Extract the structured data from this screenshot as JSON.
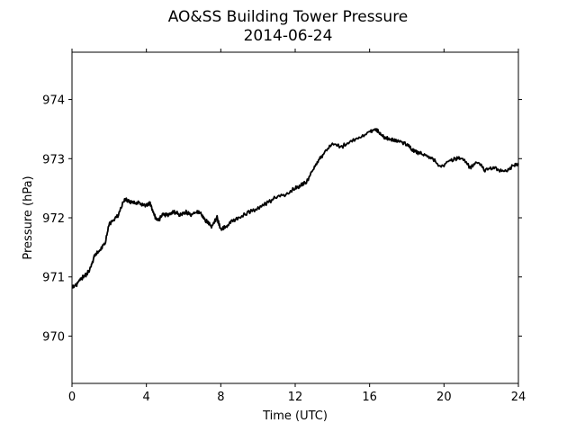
{
  "chart_data": {
    "type": "line",
    "title": "AO&SS Building Tower Pressure",
    "subtitle": "2014-06-24",
    "xlabel": "Time (UTC)",
    "ylabel": "Pressure (hPa)",
    "xlim": [
      0,
      24
    ],
    "ylim": [
      969.2,
      974.8
    ],
    "xticks": [
      0,
      4,
      8,
      12,
      16,
      20,
      24
    ],
    "xtick_labels": [
      "0",
      "4",
      "8",
      "12",
      "16",
      "20",
      "24"
    ],
    "yticks": [
      970,
      971,
      972,
      973,
      974
    ],
    "ytick_labels": [
      "970",
      "971",
      "972",
      "973",
      "974"
    ],
    "grid": false,
    "line_color": "#000000",
    "series": [
      {
        "x": [
          0,
          0.2,
          0.4,
          0.6,
          0.8,
          1.0,
          1.2,
          1.5,
          1.8,
          2.0,
          2.2,
          2.5,
          2.8,
          3.0,
          3.3,
          3.6,
          3.9,
          4.2,
          4.4,
          4.6,
          4.9,
          5.2,
          5.5,
          5.8,
          6.1,
          6.4,
          6.7,
          7.0,
          7.2,
          7.5,
          7.8,
          8.0,
          8.3,
          8.6,
          9.0,
          9.5,
          10.0,
          10.5,
          11.0,
          11.5,
          12.0,
          12.3,
          12.6,
          13.0,
          13.3,
          13.6,
          14.0,
          14.5,
          15.0,
          15.5,
          16.0,
          16.3,
          16.5,
          16.8,
          17.0,
          17.3,
          17.6,
          18.0,
          18.3,
          18.6,
          19.0,
          19.4,
          19.8,
          20.2,
          20.6,
          21.0,
          21.4,
          21.8,
          22.2,
          22.6,
          23.0,
          23.4,
          23.8,
          24.0
        ],
        "y": [
          970.85,
          970.85,
          970.95,
          971.0,
          971.05,
          971.15,
          971.35,
          971.45,
          971.6,
          971.9,
          971.95,
          972.05,
          972.3,
          972.3,
          972.25,
          972.25,
          972.2,
          972.25,
          972.05,
          971.95,
          972.05,
          972.05,
          972.1,
          972.05,
          972.1,
          972.05,
          972.1,
          972.05,
          971.95,
          971.85,
          972.0,
          971.8,
          971.85,
          971.95,
          972.0,
          972.1,
          972.15,
          972.25,
          972.35,
          972.4,
          972.5,
          972.55,
          972.6,
          972.85,
          973.0,
          973.1,
          973.25,
          973.2,
          973.3,
          973.35,
          973.45,
          973.5,
          973.45,
          973.35,
          973.35,
          973.3,
          973.3,
          973.25,
          973.15,
          973.1,
          973.05,
          973.0,
          972.85,
          972.95,
          973.0,
          973.0,
          972.85,
          972.95,
          972.8,
          972.85,
          972.8,
          972.8,
          972.9,
          972.9
        ]
      }
    ]
  }
}
